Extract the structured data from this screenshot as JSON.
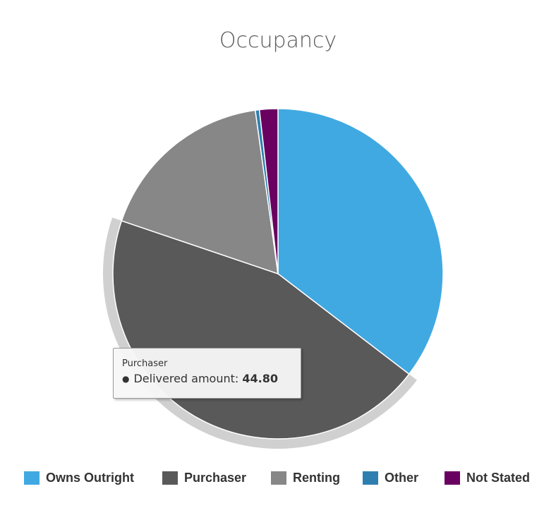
{
  "chart_data": {
    "type": "pie",
    "title": "Occupancy",
    "series_name": "Delivered amount",
    "slices": [
      {
        "label": "Owns Outright",
        "value": 35.4,
        "color": "#41a9e1"
      },
      {
        "label": "Purchaser",
        "value": 44.8,
        "color": "#595959"
      },
      {
        "label": "Renting",
        "value": 17.6,
        "color": "#878787"
      },
      {
        "label": "Other",
        "value": 0.4,
        "color": "#2e7fb0"
      },
      {
        "label": "Not Stated",
        "value": 1.8,
        "color": "#6a0060"
      }
    ],
    "legend_position": "bottom",
    "hovered_slice": "Purchaser"
  },
  "tooltip": {
    "title": "Purchaser",
    "bullet": "●",
    "series_label": "Delivered amount:",
    "value": "44.80"
  }
}
